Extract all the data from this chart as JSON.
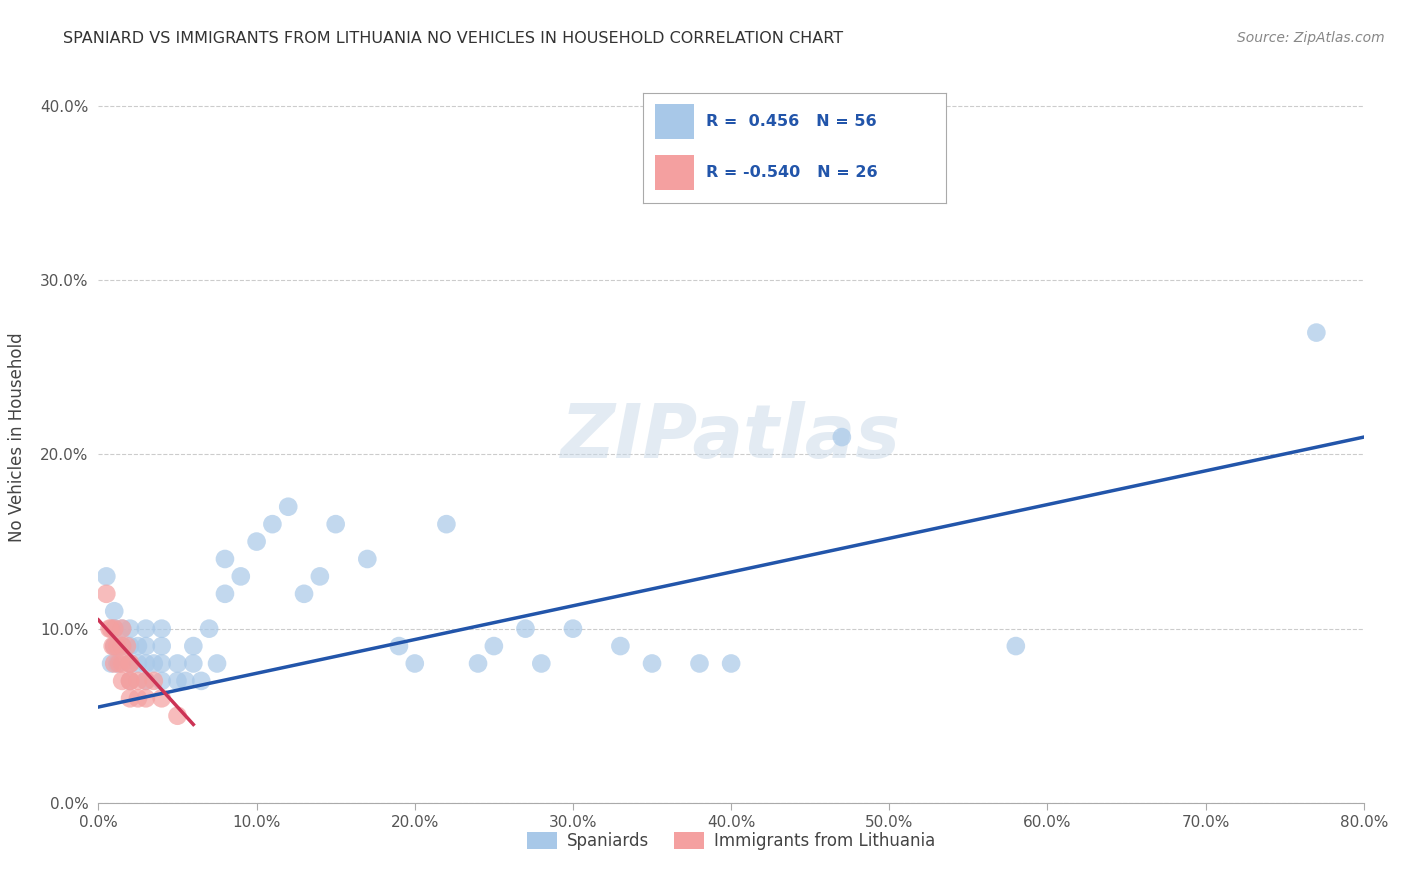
{
  "title": "SPANIARD VS IMMIGRANTS FROM LITHUANIA NO VEHICLES IN HOUSEHOLD CORRELATION CHART",
  "source": "Source: ZipAtlas.com",
  "ylabel": "No Vehicles in Household",
  "legend_labels": [
    "Spaniards",
    "Immigrants from Lithuania"
  ],
  "r_spaniards": 0.456,
  "n_spaniards": 56,
  "r_lithuania": -0.54,
  "n_lithuania": 26,
  "watermark": "ZIPatlas",
  "blue_color": "#a8c8e8",
  "pink_color": "#f4a0a0",
  "blue_line_color": "#2255aa",
  "pink_line_color": "#cc3355",
  "xlim": [
    0.0,
    0.8
  ],
  "ylim": [
    0.0,
    0.42
  ],
  "xticks": [
    0.0,
    0.1,
    0.2,
    0.3,
    0.4,
    0.5,
    0.6,
    0.7,
    0.8
  ],
  "yticks": [
    0.0,
    0.1,
    0.2,
    0.3,
    0.4
  ],
  "spaniards_x": [
    0.005,
    0.008,
    0.01,
    0.01,
    0.01,
    0.012,
    0.015,
    0.015,
    0.02,
    0.02,
    0.02,
    0.02,
    0.025,
    0.025,
    0.03,
    0.03,
    0.03,
    0.03,
    0.035,
    0.04,
    0.04,
    0.04,
    0.04,
    0.05,
    0.05,
    0.055,
    0.06,
    0.06,
    0.065,
    0.07,
    0.075,
    0.08,
    0.08,
    0.09,
    0.1,
    0.11,
    0.12,
    0.13,
    0.14,
    0.15,
    0.17,
    0.19,
    0.2,
    0.22,
    0.24,
    0.25,
    0.27,
    0.28,
    0.3,
    0.33,
    0.35,
    0.38,
    0.4,
    0.47,
    0.58,
    0.77
  ],
  "spaniards_y": [
    0.13,
    0.08,
    0.09,
    0.1,
    0.11,
    0.08,
    0.09,
    0.1,
    0.07,
    0.08,
    0.09,
    0.1,
    0.08,
    0.09,
    0.07,
    0.08,
    0.09,
    0.1,
    0.08,
    0.07,
    0.08,
    0.09,
    0.1,
    0.07,
    0.08,
    0.07,
    0.08,
    0.09,
    0.07,
    0.1,
    0.08,
    0.12,
    0.14,
    0.13,
    0.15,
    0.16,
    0.17,
    0.12,
    0.13,
    0.16,
    0.14,
    0.09,
    0.08,
    0.16,
    0.08,
    0.09,
    0.1,
    0.08,
    0.1,
    0.09,
    0.08,
    0.08,
    0.08,
    0.21,
    0.09,
    0.27
  ],
  "lithuania_x": [
    0.005,
    0.007,
    0.008,
    0.009,
    0.01,
    0.01,
    0.01,
    0.012,
    0.013,
    0.015,
    0.015,
    0.015,
    0.015,
    0.018,
    0.02,
    0.02,
    0.02,
    0.02,
    0.02,
    0.025,
    0.025,
    0.03,
    0.03,
    0.035,
    0.04,
    0.05
  ],
  "lithuania_y": [
    0.12,
    0.1,
    0.1,
    0.09,
    0.1,
    0.09,
    0.08,
    0.09,
    0.08,
    0.1,
    0.09,
    0.08,
    0.07,
    0.09,
    0.08,
    0.08,
    0.07,
    0.07,
    0.06,
    0.07,
    0.06,
    0.07,
    0.06,
    0.07,
    0.06,
    0.05
  ],
  "background_color": "#ffffff",
  "grid_color": "#cccccc",
  "blue_line_x0": 0.0,
  "blue_line_y0": 0.055,
  "blue_line_x1": 0.8,
  "blue_line_y1": 0.21,
  "pink_line_x0": 0.0,
  "pink_line_y0": 0.105,
  "pink_line_x1": 0.06,
  "pink_line_y1": 0.045
}
